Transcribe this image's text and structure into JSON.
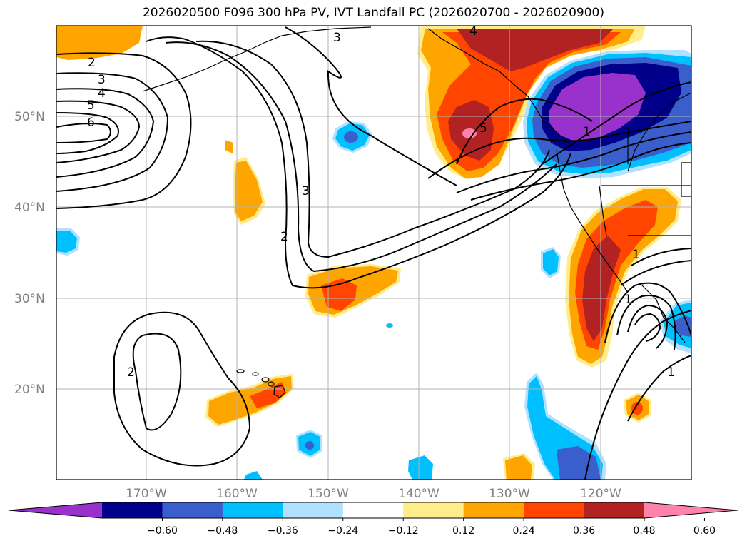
{
  "title": "2026020500 F096 300 hPa PV, IVT Landfall PC (2026020700 - 2026020900)",
  "map": {
    "lat_labels": [
      "50°N",
      "40°N",
      "30°N",
      "20°N"
    ],
    "lon_labels": [
      "170°W",
      "160°W",
      "150°W",
      "140°W",
      "130°W",
      "120°W"
    ],
    "pv_contour_labels": [
      "2",
      "3",
      "4",
      "5",
      "6",
      "3",
      "2",
      "3",
      "2",
      "4",
      "5",
      "1",
      "1",
      "1",
      "1"
    ]
  },
  "colorbar": {
    "labels": [
      "−0.60",
      "−0.48",
      "−0.36",
      "−0.24",
      "−0.12",
      "0.12",
      "0.24",
      "0.36",
      "0.48",
      "0.60"
    ],
    "colors": [
      "#9932cc",
      "#00008b",
      "#3a5fcd",
      "#00bfff",
      "#b0e2ff",
      "#ffffff",
      "#ffec8b",
      "#ffa500",
      "#ff4500",
      "#b22222",
      "#ff82ab"
    ]
  }
}
